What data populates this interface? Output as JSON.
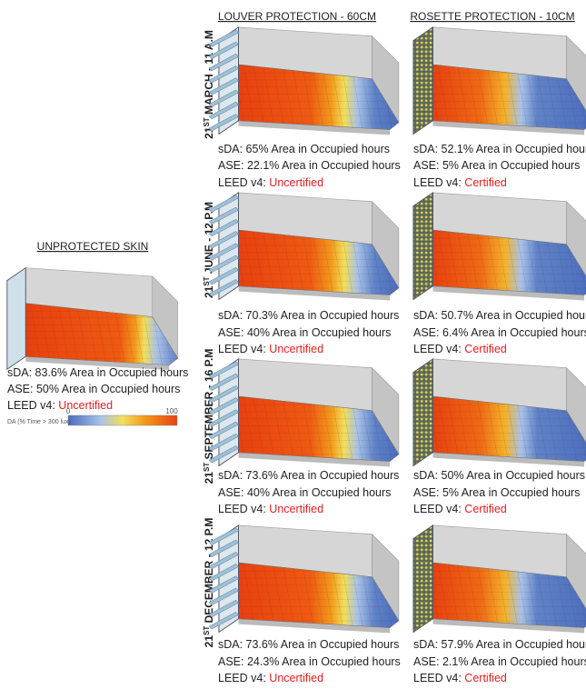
{
  "columns": [
    "LOUVER PROTECTION - 60CM",
    "ROSETTE PROTECTION - 10CM"
  ],
  "unprotected": {
    "title": "UNPROTECTED SKIN",
    "sda": "sDA: 83.6% Area in Occupied hours",
    "ase": "ASE: 50% Area in Occupied hours",
    "leed_label": "LEED v4:",
    "leed_status": "Uncertified"
  },
  "legend": {
    "min": 0,
    "max": 100,
    "caption": "DA (% Time > 300 lux)"
  },
  "rows": [
    {
      "day": "21",
      "suffix": "ST",
      "label": "MARCH - 11 A.M",
      "cells": [
        {
          "sda": "sDA: 65% Area in Occupied hours",
          "ase": "ASE: 22.1% Area in Occupied hours",
          "leed_label": "LEED v4:",
          "leed_status": "Uncertified"
        },
        {
          "sda": "sDA: 52.1% Area in Occupied hours",
          "ase": "ASE: 5% Area in Occupied hours",
          "leed_label": "LEED v4:",
          "leed_status": "Certified"
        }
      ]
    },
    {
      "day": "21",
      "suffix": "ST",
      "label": "JUNE - 12 P.M",
      "cells": [
        {
          "sda": "sDA: 70.3% Area in Occupied hours",
          "ase": "ASE: 40% Area in Occupied hours",
          "leed_label": "LEED v4:",
          "leed_status": "Uncertified"
        },
        {
          "sda": "sDA: 50.7% Area in Occupied hours",
          "ase": "ASE: 6.4% Area in Occupied hours",
          "leed_label": "LEED v4:",
          "leed_status": "Certified"
        }
      ]
    },
    {
      "day": "21",
      "suffix": "ST",
      "label": "SEPTEMBER - 16 P.M",
      "cells": [
        {
          "sda": "sDA: 73.6% Area in Occupied hours",
          "ase": "ASE: 40% Area in Occupied hours",
          "leed_label": "LEED v4:",
          "leed_status": "Uncertified"
        },
        {
          "sda": "sDA: 50% Area in Occupied hours",
          "ase": "ASE: 5% Area in Occupied hours",
          "leed_label": "LEED v4:",
          "leed_status": "Certified"
        }
      ]
    },
    {
      "day": "21",
      "suffix": "ST",
      "label": "DECEMBER - 12 P.M",
      "cells": [
        {
          "sda": "sDA: 73.6% Area in Occupied hours",
          "ase": "ASE: 24.3% Area in Occupied hours",
          "leed_label": "LEED v4:",
          "leed_status": "Uncertified"
        },
        {
          "sda": "sDA: 57.9% Area in Occupied hours",
          "ase": "ASE: 2.1% Area in Occupied hours",
          "leed_label": "LEED v4:",
          "leed_status": "Certified"
        }
      ]
    }
  ]
}
